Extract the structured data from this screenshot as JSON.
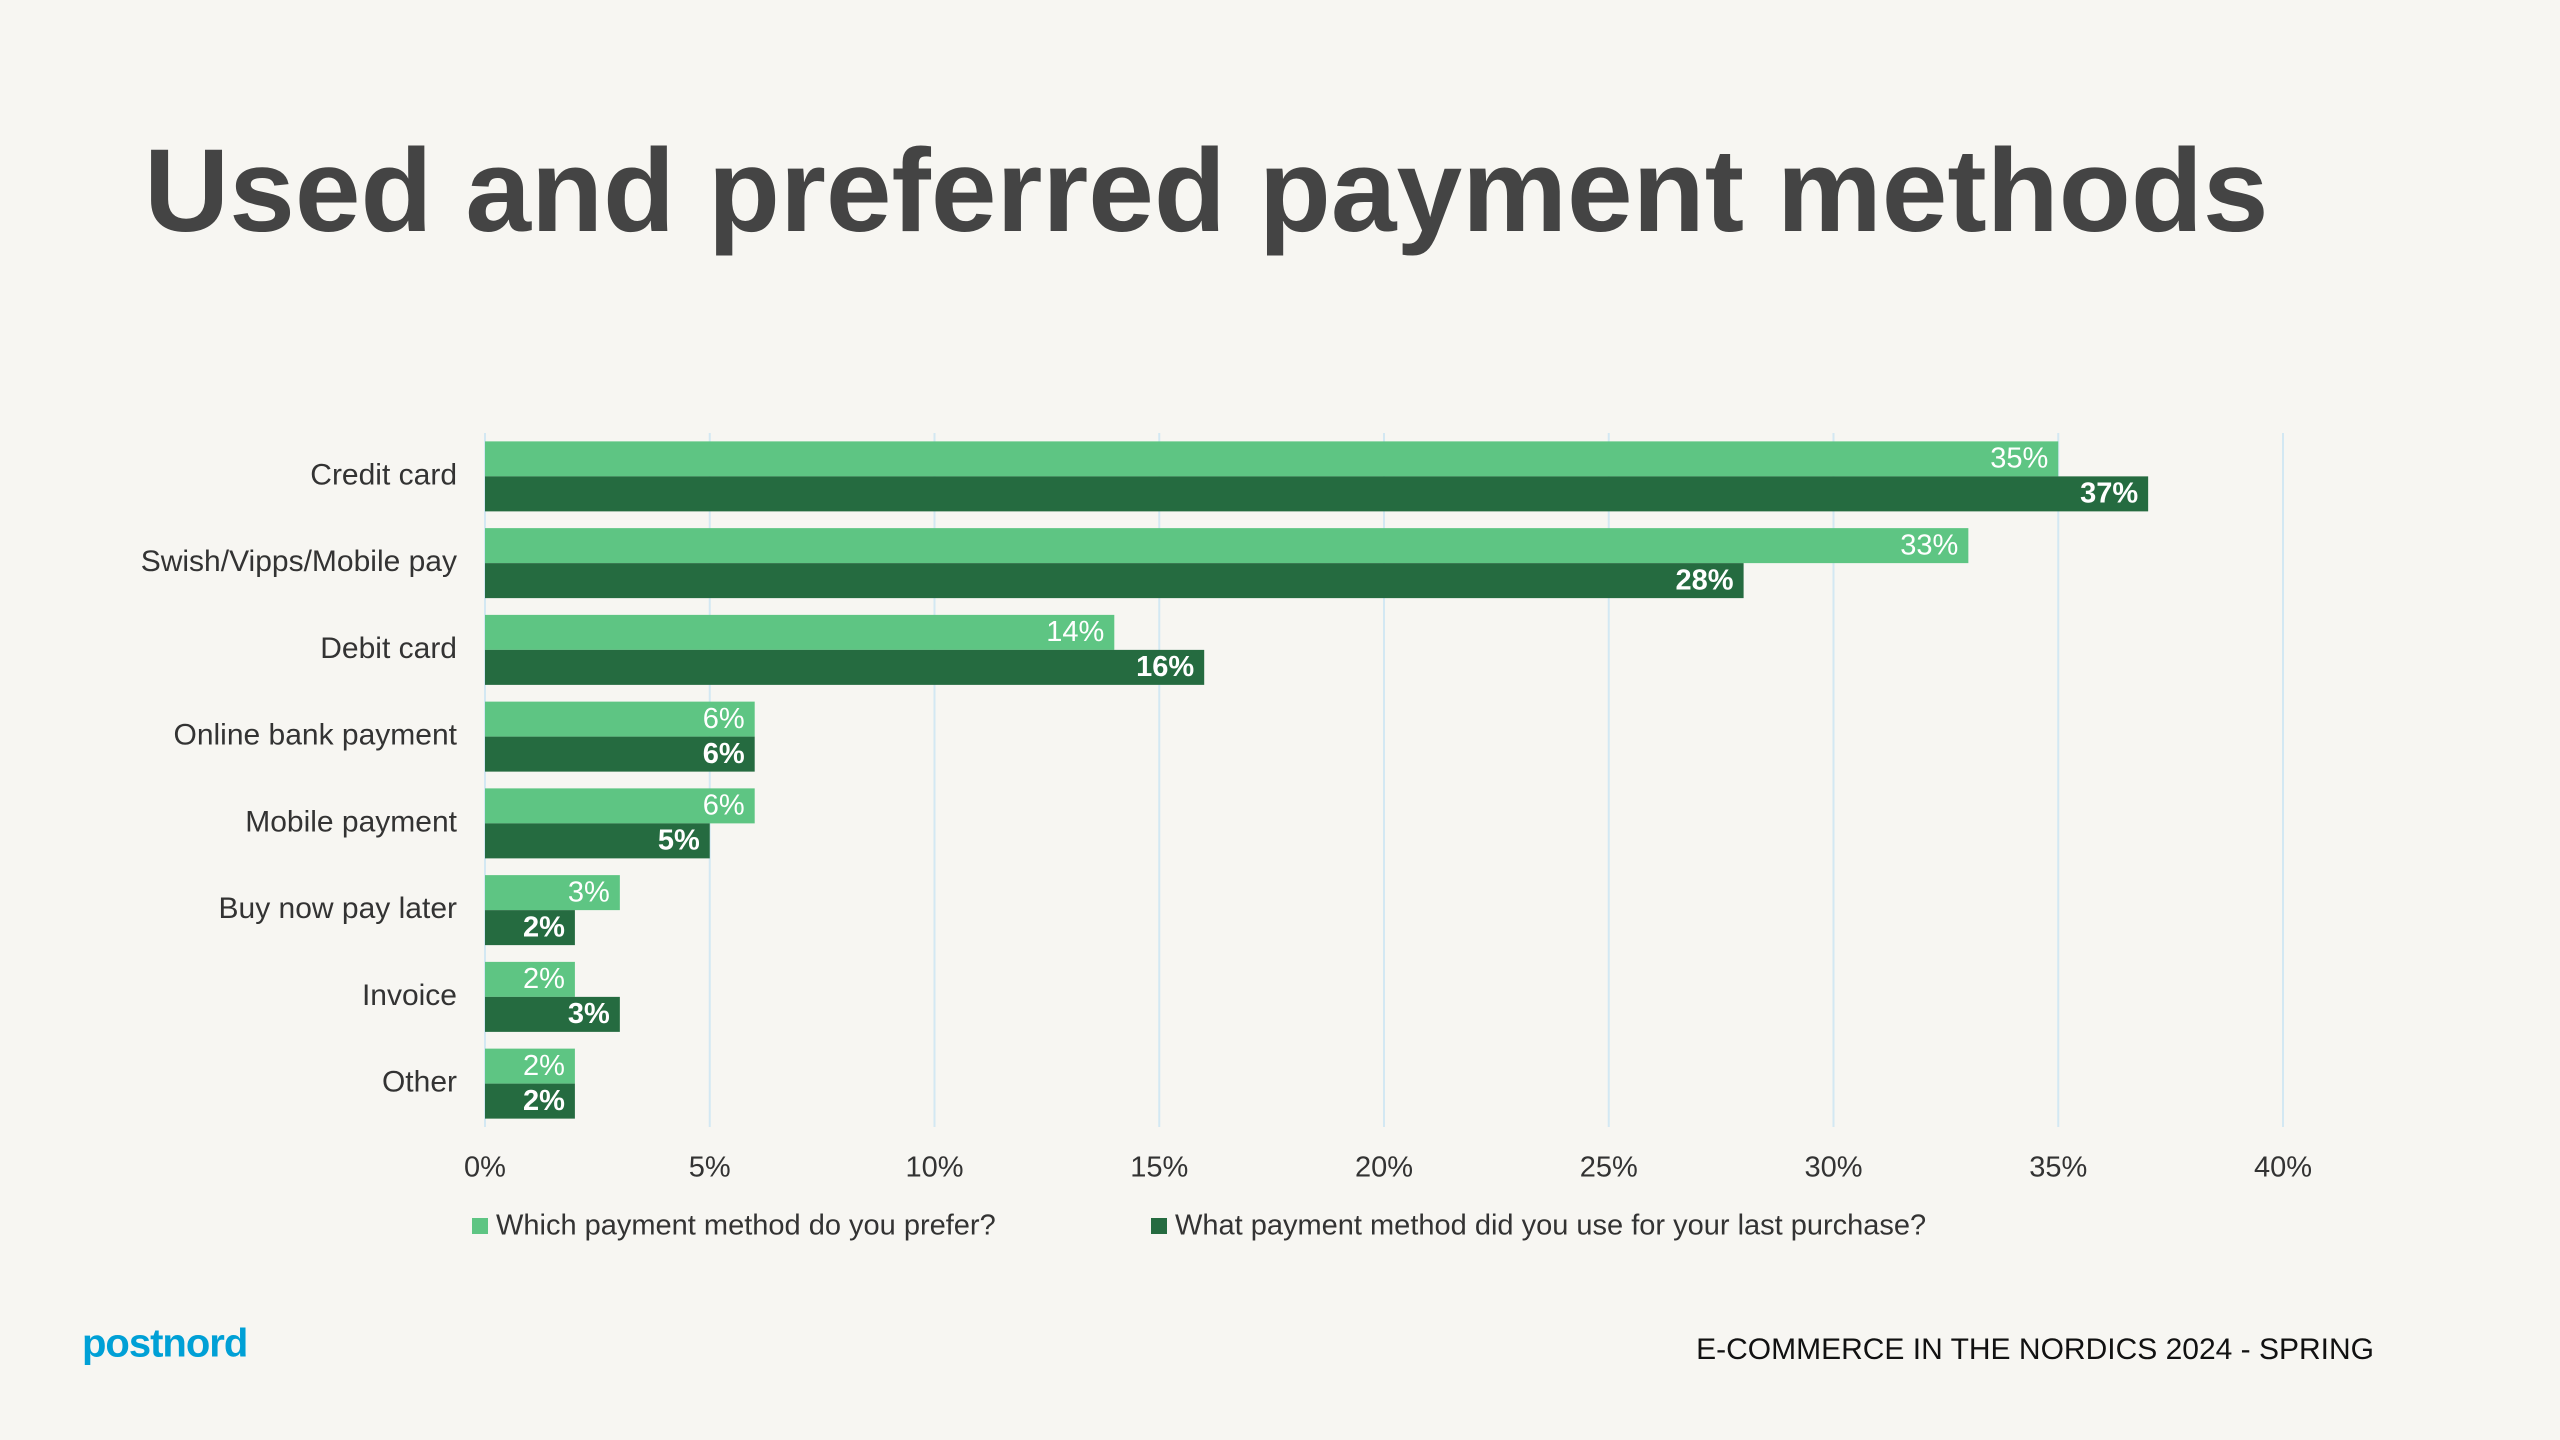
{
  "chart_data": {
    "type": "bar",
    "orientation": "horizontal",
    "title": "Used and preferred payment methods",
    "categories": [
      "Credit card",
      "Swish/Vipps/Mobile pay",
      "Debit card",
      "Online bank payment",
      "Mobile payment",
      "Buy now pay later",
      "Invoice",
      "Other"
    ],
    "series": [
      {
        "name": "Which payment method do you prefer?",
        "color": "#5ec583",
        "values": [
          35,
          33,
          14,
          6,
          6,
          3,
          2,
          2
        ],
        "value_labels": [
          "35%",
          "33%",
          "14%",
          "6%",
          "6%",
          "3%",
          "2%",
          "2%"
        ]
      },
      {
        "name": "What payment method did you use for your last purchase?",
        "color": "#256b40",
        "values": [
          37,
          28,
          16,
          6,
          5,
          2,
          3,
          2
        ],
        "value_labels": [
          "37%",
          "28%",
          "16%",
          "6%",
          "5%",
          "2%",
          "3%",
          "2%"
        ]
      }
    ],
    "xlim": [
      0,
      40
    ],
    "xticks": [
      {
        "value": 0,
        "label": "0%"
      },
      {
        "value": 5,
        "label": "5%"
      },
      {
        "value": 10,
        "label": "10%"
      },
      {
        "value": 15,
        "label": "15%"
      },
      {
        "value": 20,
        "label": "20%"
      },
      {
        "value": 25,
        "label": "25%"
      },
      {
        "value": 30,
        "label": "30%"
      },
      {
        "value": 35,
        "label": "35%"
      },
      {
        "value": 40,
        "label": "40%"
      }
    ],
    "grid": true,
    "legend": "bottom"
  },
  "footer": {
    "logo": "postnord",
    "source": "E-COMMERCE IN THE NORDICS 2024 - SPRING"
  }
}
